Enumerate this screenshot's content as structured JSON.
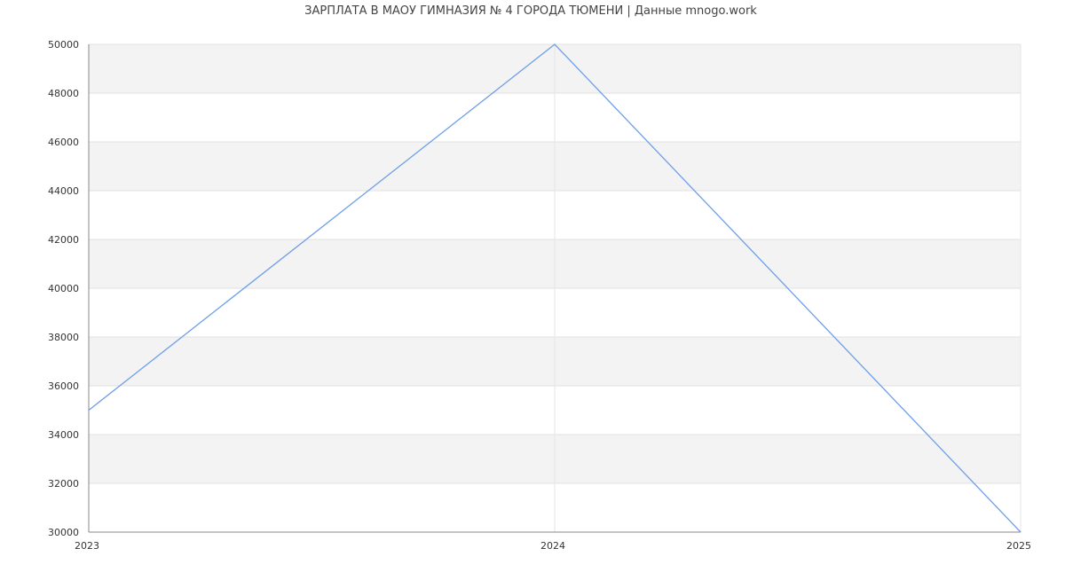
{
  "chart_data": {
    "type": "line",
    "title": "ЗАРПЛАТА В МАОУ ГИМНАЗИЯ № 4 ГОРОДА ТЮМЕНИ | Данные mnogo.work",
    "xlabel": "",
    "ylabel": "",
    "x": [
      "2023",
      "2024",
      "2025"
    ],
    "series": [
      {
        "values": [
          35000,
          50000,
          30000
        ],
        "color": "#6d9eeb"
      }
    ],
    "ylim": [
      30000,
      50000
    ],
    "yticks": [
      30000,
      32000,
      34000,
      36000,
      38000,
      40000,
      42000,
      44000,
      46000,
      48000,
      50000
    ],
    "grid": true,
    "band_color": "#f3f3f3",
    "legend": "none"
  }
}
